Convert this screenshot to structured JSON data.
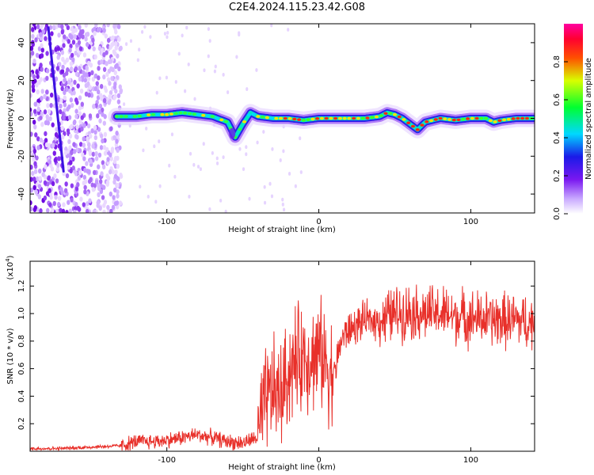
{
  "title": "C2E4.2024.115.23.42.G08",
  "colors": {
    "snr_line": "#e8302a",
    "colormap": [
      "#ffffff",
      "#d9c8ff",
      "#8a3cf0",
      "#2a1ee8",
      "#00e6ff",
      "#00ff40",
      "#ffff00",
      "#ff2000",
      "#ff00ff"
    ]
  },
  "chart_data": [
    {
      "type": "heatmap",
      "title": "",
      "xlabel": "Height of straight line (km)",
      "ylabel": "Frequency (Hz)",
      "xlim": [
        -190,
        142
      ],
      "ylim": [
        -50,
        50
      ],
      "xticks": [
        -100,
        0,
        100
      ],
      "yticks": [
        -40,
        -20,
        0,
        20,
        40
      ],
      "grid": false,
      "colorbar": {
        "label": "Normalized spectral amplitude",
        "range": [
          0.0,
          1.0
        ],
        "ticks": [
          "0.0",
          "0.2",
          "0.4",
          "0.6",
          "0.8"
        ]
      },
      "ridge": {
        "description_points_x": [
          -133,
          -120,
          -110,
          -100,
          -90,
          -80,
          -70,
          -60,
          -55,
          -50,
          -45,
          -40,
          -30,
          -20,
          -10,
          0,
          10,
          20,
          30,
          40,
          45,
          50,
          55,
          60,
          65,
          70,
          80,
          90,
          100,
          110,
          115,
          120,
          130,
          142
        ],
        "description_points_y": [
          1,
          1,
          2,
          2,
          3,
          2,
          1,
          -2,
          -10,
          -3,
          3,
          1,
          0,
          0,
          -1,
          0,
          0,
          0,
          0,
          1,
          3,
          2,
          0,
          -3,
          -6,
          -2,
          0,
          -1,
          0,
          0,
          -2,
          -1,
          0,
          0
        ]
      },
      "noise_region_x": [
        -190,
        -130
      ],
      "diagonal_streak": {
        "x": [
          -178,
          -168
        ],
        "y": [
          48,
          -28
        ]
      }
    },
    {
      "type": "line",
      "title": "",
      "xlabel": "Height of straight line (km)",
      "ylabel": "SNR (10 * v/v)",
      "y_multiplier_label": "(x10",
      "y_multiplier_exp": "4",
      "xlim": [
        -190,
        142
      ],
      "ylim": [
        0.0,
        1.38
      ],
      "xticks": [
        -100,
        0,
        100
      ],
      "yticks": [
        0.2,
        0.4,
        0.6,
        0.8,
        1.0,
        1.2
      ],
      "ytick_labels": [
        "0.2",
        "0.4",
        "0.6",
        "0.8",
        "1.0",
        "1.2"
      ],
      "grid": false,
      "series": [
        {
          "x": [
            -190,
            -170,
            -150,
            -130,
            -120,
            -110,
            -100,
            -90,
            -80,
            -70,
            -60,
            -50,
            -45,
            -40,
            -35,
            -30,
            -25,
            -20,
            -15,
            -10,
            -5,
            0,
            5,
            10,
            15,
            20,
            30,
            40,
            50,
            60,
            70,
            80,
            90,
            100,
            110,
            120,
            130,
            142
          ],
          "values": [
            0.02,
            0.02,
            0.03,
            0.04,
            0.07,
            0.07,
            0.08,
            0.1,
            0.12,
            0.1,
            0.07,
            0.06,
            0.08,
            0.1,
            0.35,
            0.45,
            0.4,
            0.58,
            0.65,
            0.7,
            0.68,
            0.72,
            0.65,
            0.55,
            0.82,
            0.88,
            0.95,
            0.95,
            1.0,
            1.02,
            1.0,
            1.0,
            0.98,
            0.97,
            0.96,
            0.95,
            0.95,
            0.93
          ]
        }
      ]
    }
  ]
}
